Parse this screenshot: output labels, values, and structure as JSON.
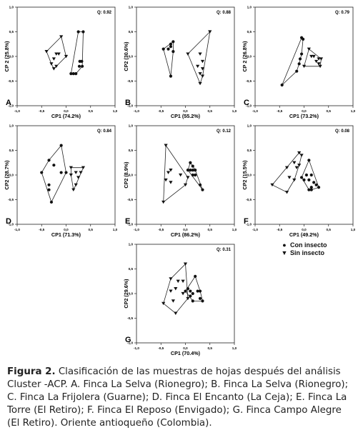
{
  "figure": {
    "caption_label": "Figura 2.",
    "caption_text": " Clasificación de las muestras de hojas después del análisis Cluster -ACP. A. Finca La Selva (Rionegro); B. Finca La Selva (Rionegro); C. Finca La Frijolera (Guarne); D. Finca El Encanto (La Ceja); E. Finca La Torre (El Retiro); F. Finca El Reposo (Envigado); G. Finca Campo Alegre (El Retiro). Oriente antioqueño (Colombia).",
    "legend": [
      {
        "symbol": "circle",
        "label": "Con insecto"
      },
      {
        "symbol": "triangle-down",
        "label": "Sin insecto"
      }
    ]
  },
  "chart_data": [
    {
      "type": "scatter",
      "panel": "A",
      "q_label": "Q: 0.92",
      "xlabel": "CP1 (74.2%)",
      "ylabel": "CP 2 (25.8%)",
      "xlim": [
        -1,
        1
      ],
      "ylim": [
        -1,
        1
      ],
      "x_ticks": [
        "-1,0",
        "-0,5",
        "0,0",
        "0,5",
        "1,0"
      ],
      "y_ticks": [
        "-1,0",
        "-0,5",
        "0,0",
        "0,5",
        "1,0"
      ],
      "series": [
        {
          "name": "Con insecto",
          "points": [
            [
              0.25,
              0.5
            ],
            [
              0.35,
              0.5
            ],
            [
              0.28,
              -0.1
            ],
            [
              0.32,
              -0.1
            ],
            [
              0.33,
              -0.2
            ],
            [
              0.27,
              -0.2
            ],
            [
              0.1,
              -0.35
            ],
            [
              0.15,
              -0.35
            ],
            [
              0.2,
              -0.35
            ]
          ]
        },
        {
          "name": "Sin insecto",
          "points": [
            [
              -0.1,
              0.4
            ],
            [
              -0.4,
              0.1
            ],
            [
              -0.2,
              0.05
            ],
            [
              -0.15,
              0.05
            ],
            [
              -0.25,
              -0.05
            ],
            [
              0.0,
              0.0
            ],
            [
              -0.3,
              -0.15
            ],
            [
              -0.2,
              -0.2
            ],
            [
              -0.25,
              -0.25
            ]
          ]
        }
      ]
    },
    {
      "type": "scatter",
      "panel": "B",
      "q_label": "Q: 0.88",
      "xlabel": "CP1 (55.2%)",
      "ylabel": "CP2 (30.6%)",
      "xlim": [
        -1,
        1
      ],
      "ylim": [
        -1,
        1
      ],
      "x_ticks": [
        "-1,0",
        "-0,5",
        "0,0",
        "0,5",
        "1,0"
      ],
      "y_ticks": [
        "-1,0",
        "-0,5",
        "0,0",
        "0,5",
        "1,0"
      ],
      "series": [
        {
          "name": "Con insecto",
          "points": [
            [
              -0.25,
              0.3
            ],
            [
              -0.3,
              0.25
            ],
            [
              -0.45,
              0.15
            ],
            [
              -0.35,
              0.15
            ],
            [
              -0.3,
              0.2
            ],
            [
              -0.25,
              0.1
            ],
            [
              -0.3,
              -0.4
            ]
          ]
        },
        {
          "name": "Sin insecto",
          "points": [
            [
              0.5,
              0.5
            ],
            [
              0.05,
              0.05
            ],
            [
              0.3,
              0.05
            ],
            [
              0.35,
              -0.1
            ],
            [
              0.25,
              -0.2
            ],
            [
              0.35,
              -0.25
            ],
            [
              0.3,
              -0.35
            ],
            [
              0.35,
              -0.4
            ],
            [
              0.3,
              -0.55
            ]
          ]
        }
      ]
    },
    {
      "type": "scatter",
      "panel": "C",
      "q_label": "Q: 0.79",
      "xlabel": "CP1 (73.2%)",
      "ylabel": "CP 2 (26.8%)",
      "xlim": [
        -1,
        1
      ],
      "ylim": [
        -1,
        1
      ],
      "x_ticks": [
        "-1,0",
        "-0,5",
        "0,0",
        "0,5",
        "1,0"
      ],
      "y_ticks": [
        "-1,0",
        "-0,5",
        "0,0",
        "0,5",
        "1,0"
      ],
      "series": [
        {
          "name": "Con insecto",
          "points": [
            [
              -0.05,
              0.38
            ],
            [
              -0.02,
              0.35
            ],
            [
              -0.05,
              0.05
            ],
            [
              -0.08,
              -0.05
            ],
            [
              -0.1,
              -0.15
            ],
            [
              -0.15,
              -0.3
            ],
            [
              -0.45,
              -0.58
            ]
          ]
        },
        {
          "name": "Sin insecto",
          "points": [
            [
              0.1,
              0.15
            ],
            [
              0.15,
              0.0
            ],
            [
              0.2,
              0.0
            ],
            [
              0.25,
              -0.1
            ],
            [
              0.3,
              -0.05
            ],
            [
              0.35,
              -0.05
            ],
            [
              0.3,
              -0.15
            ],
            [
              0.33,
              -0.2
            ],
            [
              0.0,
              -0.2
            ]
          ]
        }
      ]
    },
    {
      "type": "scatter",
      "panel": "D",
      "q_label": "Q: 0.84",
      "xlabel": "CP1 (71.3%)",
      "ylabel": "CP2 (28.7%)",
      "xlim": [
        -1,
        1
      ],
      "ylim": [
        -1,
        1
      ],
      "x_ticks": [
        "-1,0",
        "-0,5",
        "0,0",
        "0,5",
        "1,0"
      ],
      "y_ticks": [
        "-1,0",
        "-0,5",
        "0,0",
        "0,5",
        "1,0"
      ],
      "series": [
        {
          "name": "Con insecto",
          "points": [
            [
              -0.1,
              0.6
            ],
            [
              -0.35,
              0.3
            ],
            [
              -0.25,
              0.2
            ],
            [
              -0.5,
              0.05
            ],
            [
              -0.1,
              0.05
            ],
            [
              0.0,
              0.05
            ],
            [
              -0.35,
              -0.2
            ],
            [
              -0.35,
              -0.3
            ],
            [
              -0.3,
              -0.55
            ]
          ]
        },
        {
          "name": "Sin insecto",
          "points": [
            [
              0.1,
              0.15
            ],
            [
              0.35,
              0.15
            ],
            [
              0.3,
              0.05
            ],
            [
              0.2,
              0.05
            ],
            [
              0.25,
              -0.05
            ],
            [
              0.1,
              0.0
            ],
            [
              0.2,
              -0.2
            ],
            [
              0.15,
              -0.3
            ]
          ]
        }
      ]
    },
    {
      "type": "scatter",
      "panel": "E",
      "q_label": "Q: 0.12",
      "xlabel": "CP1 (86.2%)",
      "ylabel": "CP2 (8.9%)",
      "xlim": [
        -1,
        1
      ],
      "ylim": [
        -1,
        1
      ],
      "x_ticks": [
        "-1,0",
        "-0,5",
        "0,0",
        "0,5",
        "1,0"
      ],
      "y_ticks": [
        "-1,0",
        "-0,5",
        "0,0",
        "0,5",
        "1,0"
      ],
      "series": [
        {
          "name": "Con insecto",
          "points": [
            [
              0.1,
              0.25
            ],
            [
              0.15,
              0.18
            ],
            [
              0.05,
              0.1
            ],
            [
              0.1,
              0.1
            ],
            [
              0.15,
              0.1
            ],
            [
              0.2,
              0.1
            ],
            [
              0.15,
              0.0
            ],
            [
              0.2,
              0.0
            ],
            [
              0.3,
              -0.2
            ],
            [
              0.35,
              -0.3
            ]
          ]
        },
        {
          "name": "Sin insecto",
          "points": [
            [
              -0.4,
              0.6
            ],
            [
              -0.3,
              0.1
            ],
            [
              -0.35,
              0.05
            ],
            [
              -0.1,
              0.0
            ],
            [
              0.05,
              -0.05
            ],
            [
              -0.4,
              -0.1
            ],
            [
              -0.3,
              -0.15
            ],
            [
              0.0,
              -0.2
            ],
            [
              -0.45,
              -0.55
            ]
          ]
        }
      ]
    },
    {
      "type": "scatter",
      "panel": "F",
      "q_label": "Q: 0.08",
      "xlabel": "CP1 (49.2%)",
      "ylabel": "CP2 (15.5%)",
      "xlim": [
        -1,
        1
      ],
      "ylim": [
        -1,
        1
      ],
      "x_ticks": [
        "-1,0",
        "-0,5",
        "0,0",
        "0,5",
        "1,0"
      ],
      "y_ticks": [
        "-1,0",
        "-0,5",
        "0,0",
        "0,5",
        "1,0"
      ],
      "series": [
        {
          "name": "Con insecto",
          "points": [
            [
              0.1,
              0.3
            ],
            [
              0.05,
              0.0
            ],
            [
              0.15,
              0.0
            ],
            [
              0.0,
              -0.1
            ],
            [
              0.1,
              -0.1
            ],
            [
              0.2,
              -0.15
            ],
            [
              0.15,
              -0.25
            ],
            [
              0.25,
              -0.2
            ],
            [
              0.3,
              -0.25
            ],
            [
              0.15,
              -0.3
            ],
            [
              0.1,
              -0.3
            ],
            [
              -0.05,
              -0.05
            ]
          ]
        },
        {
          "name": "Sin insecto",
          "points": [
            [
              -0.1,
              0.45
            ],
            [
              -0.05,
              0.4
            ],
            [
              -0.2,
              0.25
            ],
            [
              -0.15,
              0.15
            ],
            [
              -0.1,
              0.2
            ],
            [
              -0.35,
              0.15
            ],
            [
              -0.2,
              -0.1
            ],
            [
              -0.3,
              -0.05
            ],
            [
              -0.35,
              -0.35
            ],
            [
              -0.65,
              -0.2
            ]
          ]
        }
      ]
    },
    {
      "type": "scatter",
      "panel": "G",
      "q_label": "Q: 0.31",
      "xlabel": "CP1 (70.4%)",
      "ylabel": "CP2 (29.6%)",
      "xlim": [
        -1,
        1
      ],
      "ylim": [
        -1,
        1
      ],
      "x_ticks": [
        "-1,0",
        "-0,5",
        "0,0",
        "0,5",
        "1,0"
      ],
      "y_ticks": [
        "-1,0",
        "-0,5",
        "0,0",
        "0,5",
        "1,0"
      ],
      "series": [
        {
          "name": "Con insecto",
          "points": [
            [
              0.2,
              0.35
            ],
            [
              0.0,
              0.05
            ],
            [
              0.05,
              0.1
            ],
            [
              0.1,
              0.05
            ],
            [
              0.15,
              0.0
            ],
            [
              0.1,
              -0.05
            ],
            [
              0.25,
              0.05
            ],
            [
              0.3,
              0.05
            ],
            [
              0.3,
              -0.1
            ],
            [
              0.35,
              -0.15
            ],
            [
              0.15,
              -0.15
            ]
          ]
        },
        {
          "name": "Sin insecto",
          "points": [
            [
              0.0,
              0.6
            ],
            [
              -0.3,
              0.3
            ],
            [
              -0.15,
              0.25
            ],
            [
              -0.05,
              0.25
            ],
            [
              -0.2,
              0.1
            ],
            [
              -0.3,
              0.05
            ],
            [
              -0.05,
              0.0
            ],
            [
              -0.45,
              -0.2
            ],
            [
              -0.25,
              -0.15
            ],
            [
              -0.2,
              -0.4
            ],
            [
              0.05,
              -0.1
            ]
          ]
        }
      ]
    }
  ]
}
